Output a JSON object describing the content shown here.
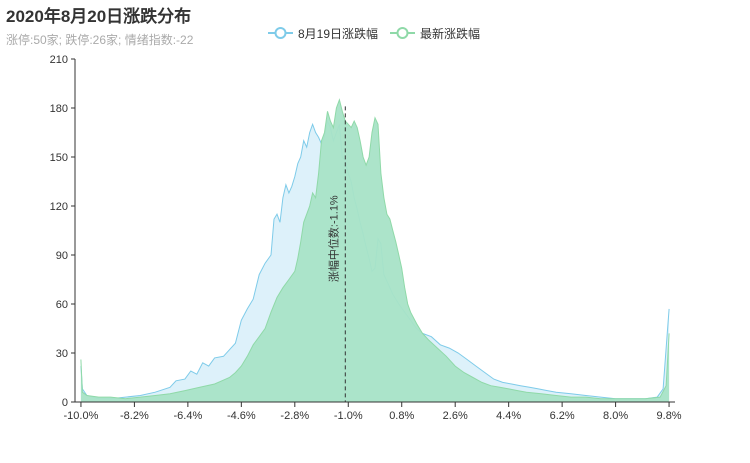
{
  "header": {
    "title": "2020年8月20日涨跌分布",
    "subtitle": "涨停:50家; 跌停:26家; 情绪指数:-22"
  },
  "chart_data": {
    "type": "area",
    "title": "2020年8月20日涨跌分布",
    "subtitle": "涨停:50家; 跌停:26家; 情绪指数:-22",
    "xlabel": "",
    "ylabel": "",
    "xlim": [
      -10.2,
      10.0
    ],
    "ylim": [
      0,
      210
    ],
    "y_ticks": [
      0,
      30,
      60,
      90,
      120,
      150,
      180,
      210
    ],
    "x_tick_values": [
      -10.0,
      -8.2,
      -6.4,
      -4.6,
      -2.8,
      -1.0,
      0.8,
      2.6,
      4.4,
      6.2,
      8.0,
      9.8
    ],
    "x_tick_labels": [
      "-10.0%",
      "-8.2%",
      "-6.4%",
      "-4.6%",
      "-2.8%",
      "-1.0%",
      "0.8%",
      "2.6%",
      "4.4%",
      "6.2%",
      "8.0%",
      "9.8%"
    ],
    "grid": false,
    "legend_position": "top-center",
    "median_line": {
      "x": -1.1,
      "label": "涨幅中位数:-1.1%"
    },
    "series": [
      {
        "name": "8月19日涨跌幅",
        "color": "#7ecbe9",
        "fill": "#ddf1fa",
        "points": [
          [
            -10.0,
            22
          ],
          [
            -9.95,
            8
          ],
          [
            -9.8,
            4
          ],
          [
            -9.4,
            2
          ],
          [
            -9.0,
            2
          ],
          [
            -8.5,
            3
          ],
          [
            -8.0,
            4
          ],
          [
            -7.5,
            6
          ],
          [
            -7.0,
            9
          ],
          [
            -6.8,
            13
          ],
          [
            -6.5,
            14
          ],
          [
            -6.3,
            19
          ],
          [
            -6.1,
            17
          ],
          [
            -5.9,
            24
          ],
          [
            -5.7,
            22
          ],
          [
            -5.5,
            27
          ],
          [
            -5.2,
            28
          ],
          [
            -5.0,
            32
          ],
          [
            -4.8,
            36
          ],
          [
            -4.6,
            50
          ],
          [
            -4.4,
            57
          ],
          [
            -4.2,
            63
          ],
          [
            -4.0,
            78
          ],
          [
            -3.8,
            85
          ],
          [
            -3.6,
            90
          ],
          [
            -3.5,
            112
          ],
          [
            -3.4,
            115
          ],
          [
            -3.3,
            110
          ],
          [
            -3.2,
            125
          ],
          [
            -3.1,
            133
          ],
          [
            -3.0,
            128
          ],
          [
            -2.9,
            132
          ],
          [
            -2.8,
            138
          ],
          [
            -2.7,
            146
          ],
          [
            -2.6,
            150
          ],
          [
            -2.5,
            160
          ],
          [
            -2.4,
            156
          ],
          [
            -2.3,
            165
          ],
          [
            -2.2,
            170
          ],
          [
            -2.1,
            165
          ],
          [
            -2.0,
            162
          ],
          [
            -1.9,
            158
          ],
          [
            -1.8,
            163
          ],
          [
            -1.7,
            172
          ],
          [
            -1.6,
            168
          ],
          [
            -1.5,
            160
          ],
          [
            -1.4,
            165
          ],
          [
            -1.3,
            170
          ],
          [
            -1.2,
            150
          ],
          [
            -1.1,
            148
          ],
          [
            -1.0,
            140
          ],
          [
            -0.9,
            135
          ],
          [
            -0.8,
            125
          ],
          [
            -0.7,
            118
          ],
          [
            -0.6,
            110
          ],
          [
            -0.5,
            103
          ],
          [
            -0.4,
            95
          ],
          [
            -0.3,
            88
          ],
          [
            -0.2,
            80
          ],
          [
            -0.1,
            82
          ],
          [
            0.0,
            100
          ],
          [
            0.1,
            97
          ],
          [
            0.2,
            78
          ],
          [
            0.3,
            74
          ],
          [
            0.4,
            70
          ],
          [
            0.5,
            66
          ],
          [
            0.7,
            60
          ],
          [
            0.9,
            55
          ],
          [
            1.1,
            50
          ],
          [
            1.3,
            45
          ],
          [
            1.5,
            42
          ],
          [
            1.8,
            40
          ],
          [
            2.1,
            35
          ],
          [
            2.4,
            33
          ],
          [
            2.7,
            30
          ],
          [
            3.0,
            26
          ],
          [
            3.3,
            22
          ],
          [
            3.6,
            18
          ],
          [
            3.9,
            14
          ],
          [
            4.2,
            12
          ],
          [
            4.5,
            11
          ],
          [
            4.8,
            10
          ],
          [
            5.1,
            9
          ],
          [
            5.4,
            8
          ],
          [
            5.7,
            7
          ],
          [
            6.0,
            6
          ],
          [
            6.5,
            5
          ],
          [
            7.0,
            4
          ],
          [
            7.5,
            3
          ],
          [
            8.0,
            2
          ],
          [
            8.5,
            2
          ],
          [
            9.0,
            2
          ],
          [
            9.4,
            3
          ],
          [
            9.6,
            8
          ],
          [
            9.75,
            45
          ],
          [
            9.8,
            57
          ]
        ]
      },
      {
        "name": "最新涨跌幅",
        "color": "#8fd9a8",
        "fill": "#a8e3c7",
        "points": [
          [
            -10.0,
            26
          ],
          [
            -9.95,
            6
          ],
          [
            -9.8,
            4
          ],
          [
            -9.4,
            3
          ],
          [
            -9.0,
            3
          ],
          [
            -8.5,
            2
          ],
          [
            -8.0,
            3
          ],
          [
            -7.5,
            4
          ],
          [
            -7.0,
            5
          ],
          [
            -6.5,
            7
          ],
          [
            -6.0,
            9
          ],
          [
            -5.5,
            11
          ],
          [
            -5.0,
            15
          ],
          [
            -4.8,
            18
          ],
          [
            -4.6,
            22
          ],
          [
            -4.4,
            28
          ],
          [
            -4.2,
            35
          ],
          [
            -4.0,
            40
          ],
          [
            -3.8,
            45
          ],
          [
            -3.6,
            55
          ],
          [
            -3.4,
            64
          ],
          [
            -3.2,
            70
          ],
          [
            -3.0,
            75
          ],
          [
            -2.8,
            80
          ],
          [
            -2.7,
            88
          ],
          [
            -2.6,
            98
          ],
          [
            -2.5,
            110
          ],
          [
            -2.4,
            115
          ],
          [
            -2.3,
            120
          ],
          [
            -2.2,
            128
          ],
          [
            -2.1,
            125
          ],
          [
            -2.0,
            140
          ],
          [
            -1.9,
            160
          ],
          [
            -1.8,
            165
          ],
          [
            -1.7,
            178
          ],
          [
            -1.6,
            172
          ],
          [
            -1.5,
            168
          ],
          [
            -1.4,
            180
          ],
          [
            -1.3,
            185
          ],
          [
            -1.2,
            178
          ],
          [
            -1.1,
            172
          ],
          [
            -1.0,
            170
          ],
          [
            -0.9,
            168
          ],
          [
            -0.8,
            172
          ],
          [
            -0.7,
            168
          ],
          [
            -0.6,
            160
          ],
          [
            -0.5,
            150
          ],
          [
            -0.4,
            145
          ],
          [
            -0.3,
            150
          ],
          [
            -0.2,
            165
          ],
          [
            -0.1,
            174
          ],
          [
            0.0,
            170
          ],
          [
            0.1,
            140
          ],
          [
            0.2,
            125
          ],
          [
            0.3,
            115
          ],
          [
            0.4,
            112
          ],
          [
            0.5,
            105
          ],
          [
            0.6,
            98
          ],
          [
            0.7,
            90
          ],
          [
            0.8,
            82
          ],
          [
            0.9,
            70
          ],
          [
            1.0,
            60
          ],
          [
            1.1,
            55
          ],
          [
            1.3,
            48
          ],
          [
            1.5,
            42
          ],
          [
            1.7,
            38
          ],
          [
            2.0,
            33
          ],
          [
            2.3,
            28
          ],
          [
            2.6,
            22
          ],
          [
            2.9,
            18
          ],
          [
            3.2,
            15
          ],
          [
            3.5,
            12
          ],
          [
            3.8,
            10
          ],
          [
            4.1,
            9
          ],
          [
            4.4,
            8
          ],
          [
            4.7,
            7
          ],
          [
            5.0,
            6
          ],
          [
            5.5,
            5
          ],
          [
            6.0,
            4
          ],
          [
            6.5,
            3
          ],
          [
            7.0,
            3
          ],
          [
            7.5,
            2
          ],
          [
            8.0,
            2
          ],
          [
            8.5,
            2
          ],
          [
            9.0,
            2
          ],
          [
            9.5,
            3
          ],
          [
            9.7,
            10
          ],
          [
            9.8,
            42
          ]
        ]
      }
    ]
  }
}
